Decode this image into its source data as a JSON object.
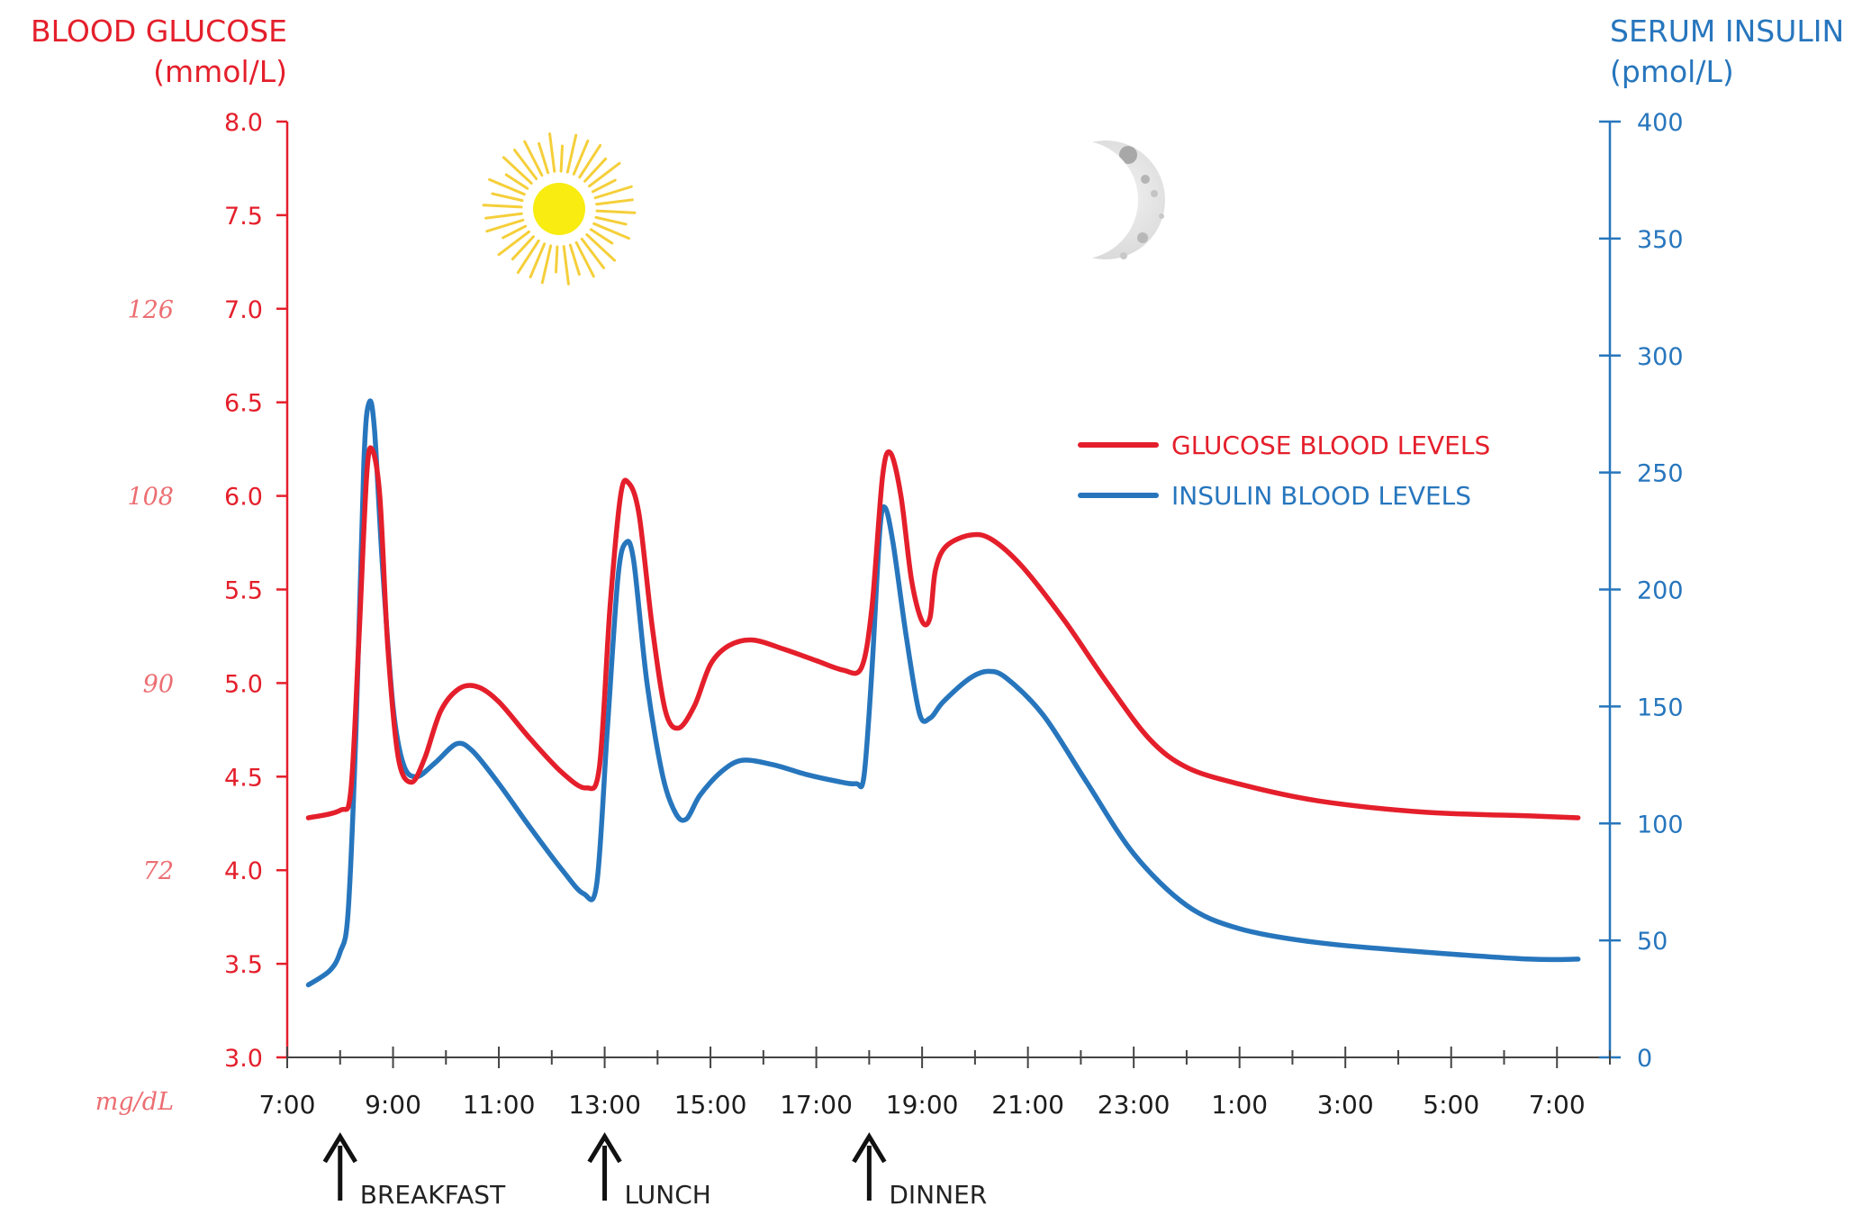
{
  "chart_data": {
    "type": "line",
    "left_axis": {
      "title_line1": "BLOOD GLUCOSE",
      "title_line2": "(mmol/L)",
      "ticks": [
        "8.0",
        "7.5",
        "7.0",
        "6.5",
        "6.0",
        "5.5",
        "5.0",
        "4.5",
        "4.0",
        "3.5",
        "3.0"
      ],
      "range": [
        3.0,
        8.0
      ],
      "color": "#e41f2b"
    },
    "secondary_left_labels": {
      "unit": "mg/dL",
      "labels": [
        {
          "text": "126",
          "at": 7.0
        },
        {
          "text": "108",
          "at": 6.0
        },
        {
          "text": "90",
          "at": 5.0
        },
        {
          "text": "72",
          "at": 4.0
        }
      ],
      "color": "#ec6e72"
    },
    "right_axis": {
      "title_line1": "SERUM INSULIN",
      "title_line2": "(pmol/L)",
      "ticks": [
        "400",
        "350",
        "300",
        "250",
        "200",
        "150",
        "100",
        "50",
        "0"
      ],
      "range": [
        0,
        400
      ],
      "color": "#2776bd"
    },
    "x_axis": {
      "range_hours": [
        7,
        32
      ],
      "tick_labels": [
        "7:00",
        "9:00",
        "11:00",
        "13:00",
        "15:00",
        "17:00",
        "19:00",
        "21:00",
        "23:00",
        "1:00",
        "3:00",
        "5:00",
        "7:00"
      ],
      "tick_label_hours": [
        7,
        9,
        11,
        13,
        15,
        17,
        19,
        21,
        23,
        25,
        27,
        29,
        31
      ]
    },
    "meals": [
      {
        "label": "BREAKFAST",
        "hour": 8.0
      },
      {
        "label": "LUNCH",
        "hour": 13.0
      },
      {
        "label": "DINNER",
        "hour": 18.0
      }
    ],
    "series": [
      {
        "name": "GLUCOSE BLOOD LEVELS",
        "axis": "left",
        "color": "#e41f2b",
        "points": [
          [
            7.4,
            4.28
          ],
          [
            8.0,
            4.32
          ],
          [
            8.2,
            4.42
          ],
          [
            8.35,
            5.2
          ],
          [
            8.5,
            6.1
          ],
          [
            8.6,
            6.25
          ],
          [
            8.75,
            6.0
          ],
          [
            8.9,
            5.2
          ],
          [
            9.1,
            4.6
          ],
          [
            9.35,
            4.47
          ],
          [
            9.6,
            4.6
          ],
          [
            9.9,
            4.85
          ],
          [
            10.25,
            4.97
          ],
          [
            10.6,
            4.98
          ],
          [
            11.0,
            4.9
          ],
          [
            11.6,
            4.7
          ],
          [
            12.2,
            4.52
          ],
          [
            12.65,
            4.44
          ],
          [
            12.9,
            4.55
          ],
          [
            13.1,
            5.4
          ],
          [
            13.3,
            6.0
          ],
          [
            13.45,
            6.07
          ],
          [
            13.65,
            5.9
          ],
          [
            13.9,
            5.3
          ],
          [
            14.15,
            4.85
          ],
          [
            14.4,
            4.76
          ],
          [
            14.7,
            4.88
          ],
          [
            15.0,
            5.1
          ],
          [
            15.35,
            5.2
          ],
          [
            15.8,
            5.23
          ],
          [
            16.4,
            5.18
          ],
          [
            17.0,
            5.12
          ],
          [
            17.5,
            5.07
          ],
          [
            17.85,
            5.08
          ],
          [
            18.05,
            5.4
          ],
          [
            18.25,
            6.1
          ],
          [
            18.4,
            6.23
          ],
          [
            18.6,
            6.0
          ],
          [
            18.8,
            5.55
          ],
          [
            19.0,
            5.33
          ],
          [
            19.15,
            5.35
          ],
          [
            19.25,
            5.6
          ],
          [
            19.45,
            5.73
          ],
          [
            19.9,
            5.79
          ],
          [
            20.3,
            5.77
          ],
          [
            20.9,
            5.62
          ],
          [
            21.7,
            5.33
          ],
          [
            22.5,
            5.0
          ],
          [
            23.3,
            4.7
          ],
          [
            24.0,
            4.55
          ],
          [
            25.0,
            4.46
          ],
          [
            26.5,
            4.37
          ],
          [
            28.5,
            4.31
          ],
          [
            30.5,
            4.29
          ],
          [
            31.4,
            4.28
          ]
        ]
      },
      {
        "name": "INSULIN BLOOD LEVELS",
        "axis": "right",
        "color": "#2776bd",
        "points": [
          [
            7.4,
            31
          ],
          [
            7.8,
            37
          ],
          [
            8.0,
            45
          ],
          [
            8.15,
            62
          ],
          [
            8.3,
            140
          ],
          [
            8.45,
            255
          ],
          [
            8.55,
            280
          ],
          [
            8.65,
            268
          ],
          [
            8.8,
            210
          ],
          [
            9.0,
            150
          ],
          [
            9.2,
            125
          ],
          [
            9.45,
            120
          ],
          [
            9.8,
            126
          ],
          [
            10.2,
            134
          ],
          [
            10.5,
            131
          ],
          [
            11.0,
            117
          ],
          [
            11.6,
            98
          ],
          [
            12.2,
            80
          ],
          [
            12.6,
            70
          ],
          [
            12.85,
            74
          ],
          [
            13.05,
            140
          ],
          [
            13.25,
            205
          ],
          [
            13.4,
            220
          ],
          [
            13.55,
            212
          ],
          [
            13.8,
            160
          ],
          [
            14.1,
            120
          ],
          [
            14.35,
            104
          ],
          [
            14.55,
            102
          ],
          [
            14.8,
            112
          ],
          [
            15.2,
            122
          ],
          [
            15.6,
            127
          ],
          [
            16.2,
            125
          ],
          [
            16.8,
            121
          ],
          [
            17.4,
            118
          ],
          [
            17.75,
            117
          ],
          [
            17.9,
            120
          ],
          [
            18.05,
            165
          ],
          [
            18.2,
            225
          ],
          [
            18.3,
            235
          ],
          [
            18.45,
            220
          ],
          [
            18.7,
            180
          ],
          [
            18.95,
            147
          ],
          [
            19.15,
            145
          ],
          [
            19.4,
            152
          ],
          [
            19.9,
            162
          ],
          [
            20.25,
            165
          ],
          [
            20.6,
            162
          ],
          [
            21.3,
            146
          ],
          [
            22.1,
            118
          ],
          [
            23.0,
            87
          ],
          [
            24.0,
            65
          ],
          [
            25.0,
            55
          ],
          [
            26.5,
            49
          ],
          [
            28.5,
            45
          ],
          [
            30.5,
            42
          ],
          [
            31.4,
            42
          ]
        ]
      }
    ],
    "legend": {
      "items": [
        "GLUCOSE BLOOD LEVELS",
        "INSULIN BLOOD LEVELS"
      ],
      "placement": "upper-right"
    },
    "decorations": {
      "sun_icon": "sun",
      "moon_icon": "crescent-moon"
    }
  }
}
